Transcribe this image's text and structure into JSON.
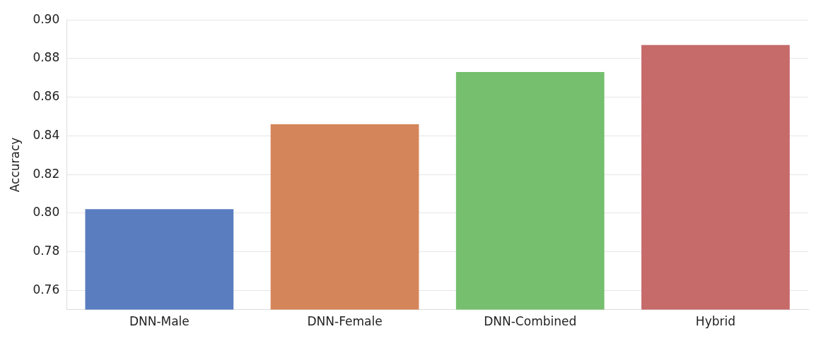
{
  "chart_data": {
    "type": "bar",
    "ylabel": "Accuracy",
    "categories": [
      "DNN-Male",
      "DNN-Female",
      "DNN-Combined",
      "Hybrid"
    ],
    "values": [
      0.802,
      0.846,
      0.873,
      0.887
    ],
    "colors": [
      "#5a7dc0",
      "#d5855a",
      "#75bf6e",
      "#c66a6a"
    ],
    "ylim": [
      0.75,
      0.9
    ],
    "yticks": [
      0.76,
      0.78,
      {
        "value": 0.8,
        "label": "0.80"
      },
      0.82,
      0.84,
      0.86,
      0.88,
      {
        "value": 0.9,
        "label": "0.90"
      }
    ],
    "grid": "y"
  }
}
